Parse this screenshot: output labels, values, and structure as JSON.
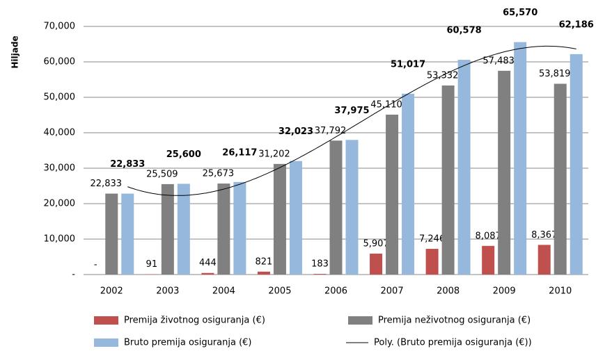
{
  "chart_data": {
    "type": "bar",
    "y_label": "Hiljade",
    "categories": [
      "2002",
      "2003",
      "2004",
      "2005",
      "2006",
      "2007",
      "2008",
      "2009",
      "2010"
    ],
    "series": [
      {
        "name": "Premija životnog osiguranja (€)",
        "color": "#c0504d",
        "values": [
          0,
          91,
          444,
          821,
          183,
          5907,
          7246,
          8087,
          8367
        ],
        "value_labels": [
          "-",
          "91",
          "444",
          "821",
          "183",
          "5,907",
          "7,246",
          "8,087",
          "8,367"
        ]
      },
      {
        "name": "Premija neživotnog osiguranja (€)",
        "color": "#808080",
        "values": [
          22833,
          25509,
          25673,
          31202,
          37792,
          45110,
          53332,
          57483,
          53819
        ],
        "value_labels": [
          "22,833",
          "25,509",
          "25,673",
          "31,202",
          "37,792",
          "45,110",
          "53,332",
          "57,483",
          "53,819"
        ]
      },
      {
        "name": "Bruto premija osiguranja (€)",
        "color": "#95b8dc",
        "values": [
          22833,
          25600,
          26117,
          32023,
          37975,
          51017,
          60578,
          65570,
          62186
        ],
        "value_labels": [
          "22,833",
          "25,600",
          "26,117",
          "32,023",
          "37,975",
          "51,017",
          "60,578",
          "65,570",
          "62,186"
        ]
      }
    ],
    "trendline": {
      "name": "Poly. (Bruto premija osiguranja (€))",
      "color": "#000000"
    },
    "ylim": [
      0,
      70000
    ],
    "yticks": [
      {
        "value": 0,
        "label": "-"
      },
      {
        "value": 10000,
        "label": "10,000"
      },
      {
        "value": 20000,
        "label": "20,000"
      },
      {
        "value": 30000,
        "label": "30,000"
      },
      {
        "value": 40000,
        "label": "40,000"
      },
      {
        "value": 50000,
        "label": "50,000"
      },
      {
        "value": 60000,
        "label": "60,000"
      },
      {
        "value": 70000,
        "label": "70,000"
      }
    ],
    "grid": true
  }
}
